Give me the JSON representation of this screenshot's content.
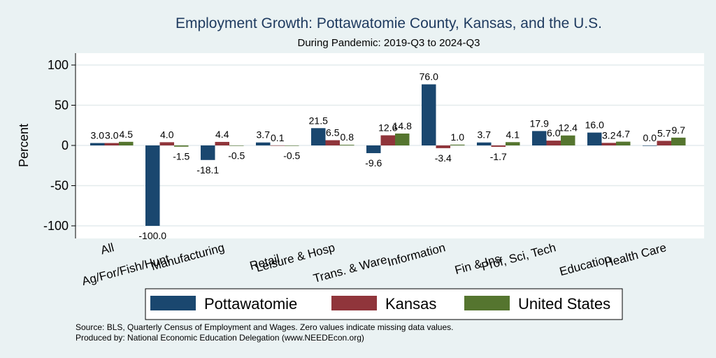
{
  "chart_data": {
    "type": "bar",
    "title": "Employment Growth: Pottawatomie County, Kansas, and the U.S.",
    "subtitle": "During Pandemic: 2019-Q3 to 2024-Q3",
    "ylabel": "Percent",
    "xlabel": "",
    "ylim": [
      -115,
      115
    ],
    "yticks": [
      100,
      50,
      0,
      -50,
      -100
    ],
    "grid": true,
    "legend_position": "bottom",
    "categories": [
      "All",
      "Ag/For/Fish/Hunt",
      "Manufacturing",
      "Retail",
      "Leisure & Hosp",
      "Trans. & Ware.",
      "Information",
      "Fin & Ins",
      "Prof, Sci, Tech",
      "Education",
      "Health Care"
    ],
    "series": [
      {
        "name": "Pottawatomie",
        "color": "#1a476f",
        "values": [
          3.0,
          -100.0,
          -18.1,
          3.7,
          21.5,
          -9.6,
          76.0,
          3.7,
          17.9,
          16.0,
          0.0
        ],
        "labels": [
          "3.0",
          "-100.0",
          "-18.1",
          "3.7",
          "21.5",
          "-9.6",
          "76.0",
          "3.7",
          "17.9",
          "16.0",
          "0.0"
        ]
      },
      {
        "name": "Kansas",
        "color": "#90353b",
        "values": [
          3.0,
          4.0,
          4.4,
          0.1,
          6.5,
          12.6,
          -3.4,
          -1.7,
          6.0,
          3.2,
          5.7
        ],
        "labels": [
          "3.0",
          "4.0",
          "4.4",
          "0.1",
          "6.5",
          "12.6",
          "-3.4",
          "-1.7",
          "6.0",
          "3.2",
          "5.7"
        ]
      },
      {
        "name": "United States",
        "color": "#55752f",
        "values": [
          4.5,
          -1.5,
          -0.5,
          -0.5,
          0.8,
          14.8,
          1.0,
          4.1,
          12.4,
          4.7,
          9.7
        ],
        "labels": [
          "4.5",
          "-1.5",
          "-0.5",
          "-0.5",
          "0.8",
          "14.8",
          "1.0",
          "4.1",
          "12.4",
          "4.7",
          "9.7"
        ]
      }
    ],
    "notes": [
      "Source: BLS, Quarterly Census of Employment and Wages. Zero values indicate missing data values.",
      "Produced by: National Economic Education Delegation (www.NEEDEcon.org)"
    ]
  }
}
